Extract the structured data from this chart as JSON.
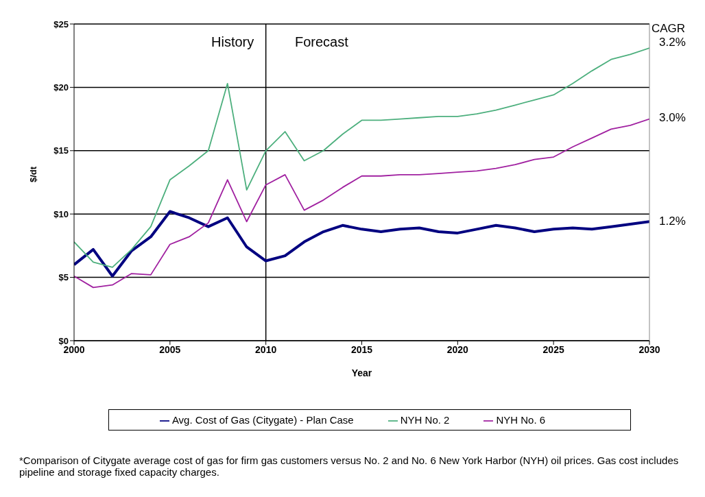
{
  "chart_data": {
    "type": "line",
    "xlabel": "Year",
    "ylabel": "$/dt",
    "x": [
      2000,
      2001,
      2002,
      2003,
      2004,
      2005,
      2006,
      2007,
      2008,
      2009,
      2010,
      2011,
      2012,
      2013,
      2014,
      2015,
      2016,
      2017,
      2018,
      2019,
      2020,
      2021,
      2022,
      2023,
      2024,
      2025,
      2026,
      2027,
      2028,
      2029,
      2030
    ],
    "series": [
      {
        "name": "Avg. Cost of Gas (Citygate) - Plan Case",
        "color": "#000080",
        "values": [
          6.0,
          7.2,
          5.1,
          7.1,
          8.2,
          10.2,
          9.7,
          9.0,
          9.7,
          7.4,
          6.3,
          6.7,
          7.8,
          8.6,
          9.1,
          8.8,
          8.6,
          8.8,
          8.9,
          8.6,
          8.5,
          8.8,
          9.1,
          8.9,
          8.6,
          8.8,
          8.9,
          8.8,
          9.0,
          9.2,
          9.4
        ]
      },
      {
        "name": "NYH No. 2",
        "color": "#4caf7d",
        "values": [
          7.8,
          6.2,
          5.8,
          7.2,
          9.0,
          12.7,
          13.8,
          15.0,
          20.3,
          11.9,
          15.0,
          16.5,
          14.2,
          15.0,
          16.3,
          17.4,
          17.4,
          17.5,
          17.6,
          17.7,
          17.7,
          17.9,
          18.2,
          18.6,
          19.0,
          19.4,
          20.3,
          21.3,
          22.2,
          22.6,
          23.1
        ]
      },
      {
        "name": "NYH No. 6",
        "color": "#a020a0",
        "values": [
          5.1,
          4.2,
          4.4,
          5.3,
          5.2,
          7.6,
          8.2,
          9.3,
          12.7,
          9.4,
          12.3,
          13.1,
          10.3,
          11.1,
          12.1,
          13.0,
          13.0,
          13.1,
          13.1,
          13.2,
          13.3,
          13.4,
          13.6,
          13.9,
          14.3,
          14.5,
          15.3,
          16.0,
          16.7,
          17.0,
          17.5
        ]
      }
    ],
    "xlim": [
      2000,
      2030
    ],
    "xticks": [
      2000,
      2005,
      2010,
      2015,
      2020,
      2025,
      2030
    ],
    "ylim": [
      0,
      25
    ],
    "yticks": [
      {
        "value": 0,
        "label": "$0"
      },
      {
        "value": 5,
        "label": "$5"
      },
      {
        "value": 10,
        "label": "$10"
      },
      {
        "value": 15,
        "label": "$15"
      },
      {
        "value": 20,
        "label": "$20"
      },
      {
        "value": 25,
        "label": "$25"
      }
    ],
    "grid": "y",
    "legend": "bottom",
    "marker": "none",
    "ref_lines": [
      {
        "axis": "x",
        "value": 2010,
        "color": "#000000"
      }
    ],
    "annotations": [
      "History",
      "Forecast",
      "CAGR",
      "3.2%",
      "3.0%",
      "1.2%",
      "*Comparison of Citygate average cost of gas for firm gas customers versus No. 2 and No. 6 New York Harbor (NYH) oil prices. Gas cost includes pipeline and storage fixed capacity charges."
    ]
  }
}
